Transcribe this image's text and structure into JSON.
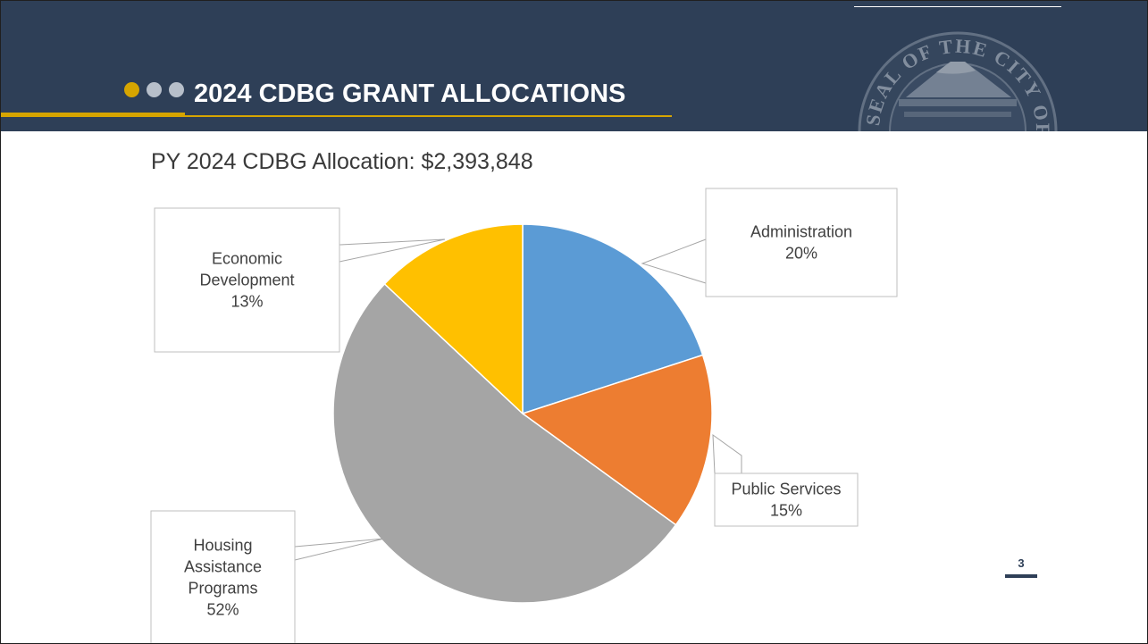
{
  "slide": {
    "title": "2024 CDBG GRANT ALLOCATIONS",
    "subtitle": "PY 2024 CDBG Allocation: $2,393,848",
    "page_number": "3",
    "seal_text": "SEAL OF THE CITY OF TACOMA"
  },
  "colors": {
    "header_bg": "#2e3f57",
    "accent_gold": "#d6a500",
    "dot_gray": "#b7bfca"
  },
  "chart_data": {
    "type": "pie",
    "slices": [
      {
        "label": "Administration",
        "value": 20,
        "value_label": "20%",
        "color": "#5b9bd5"
      },
      {
        "label": "Public Services",
        "value": 15,
        "value_label": "15%",
        "color": "#ed7d31"
      },
      {
        "label": "Housing Assistance Programs",
        "value": 52,
        "value_label": "52%",
        "color": "#a5a5a5"
      },
      {
        "label": "Economic Development",
        "value": 13,
        "value_label": "13%",
        "color": "#ffc000"
      }
    ]
  }
}
